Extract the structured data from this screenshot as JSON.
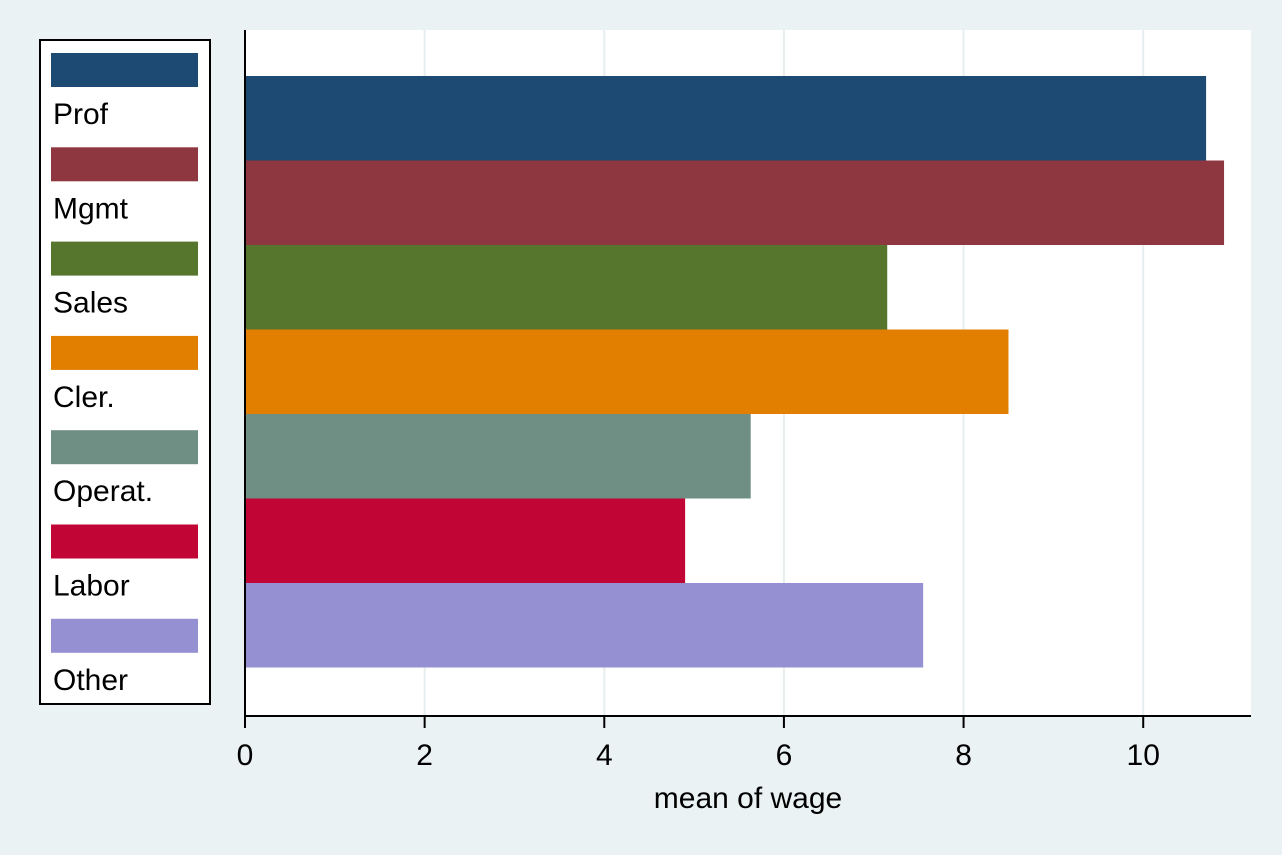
{
  "chart_data": {
    "type": "bar",
    "orientation": "horizontal",
    "title": "",
    "xlabel": "mean of wage",
    "ylabel": "",
    "xlim": [
      0,
      11.2
    ],
    "xticks": [
      0,
      2,
      4,
      6,
      8,
      10
    ],
    "grid": true,
    "legend_position": "left",
    "series": [
      {
        "name": "Prof",
        "value": 10.7,
        "color": "#1c4a72"
      },
      {
        "name": "Mgmt",
        "value": 10.9,
        "color": "#8f3740"
      },
      {
        "name": "Sales",
        "value": 7.15,
        "color": "#56762e"
      },
      {
        "name": "Cler.",
        "value": 8.5,
        "color": "#e27e00"
      },
      {
        "name": "Operat.",
        "value": 5.63,
        "color": "#6f8f84"
      },
      {
        "name": "Labor",
        "value": 4.9,
        "color": "#c10534"
      },
      {
        "name": "Other",
        "value": 7.55,
        "color": "#9590d2"
      }
    ]
  },
  "colors": {
    "background": "#eaf2f3",
    "plot_background": "#ffffff",
    "grid": "#e6eef0",
    "axis": "#000000"
  }
}
